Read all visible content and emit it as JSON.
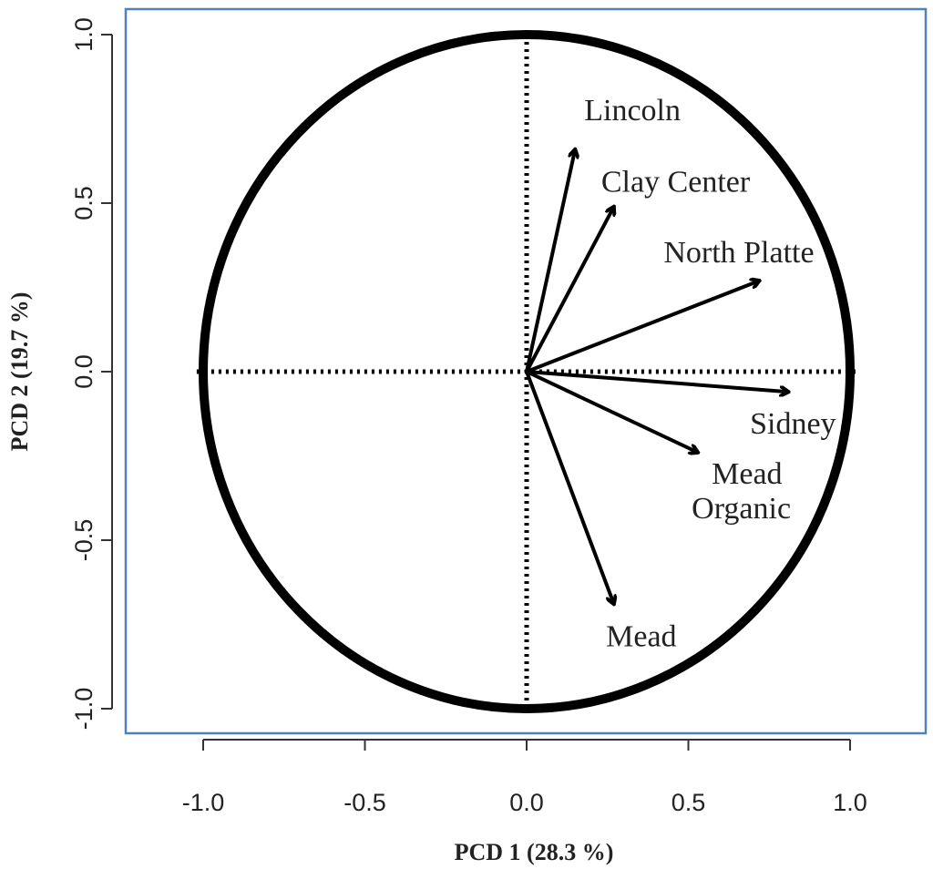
{
  "chart_data": {
    "type": "scatter",
    "subtype": "correlation-circle",
    "title": "",
    "xlabel": "PCD 1 (28.3 %)",
    "ylabel": "PCD 2 (19.7 %)",
    "xlim": [
      -1.0,
      1.0
    ],
    "ylim": [
      -1.0,
      1.0
    ],
    "xticks": [
      "-1.0",
      "-0.5",
      "0.0",
      "0.5",
      "1.0"
    ],
    "yticks": [
      "-1.0",
      "-0.5",
      "0.0",
      "0.5",
      "1.0"
    ],
    "grid": false,
    "frame_color": "#4f81bd",
    "vectors": [
      {
        "name": "Lincoln",
        "x": 0.15,
        "y": 0.66
      },
      {
        "name": "Clay Center",
        "x": 0.27,
        "y": 0.49
      },
      {
        "name": "North Platte",
        "x": 0.72,
        "y": 0.27
      },
      {
        "name": "Sidney",
        "x": 0.81,
        "y": -0.06
      },
      {
        "name": "Mead Organic",
        "x": 0.53,
        "y": -0.24
      },
      {
        "name": "Mead",
        "x": 0.27,
        "y": -0.69
      }
    ]
  }
}
